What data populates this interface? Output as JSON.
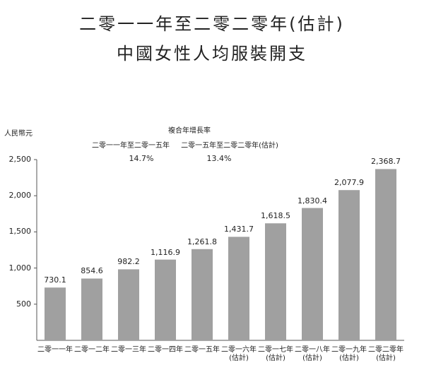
{
  "chart_data": {
    "type": "bar",
    "title": "二零一一年至二零二零年(估計)",
    "subtitle": "中國女性人均服裝開支",
    "y_label": "人民幣元",
    "annotation": {
      "title": "複合年增長率",
      "periods": [
        {
          "label": "二零一一年至二零一五年",
          "value": "14.7%"
        },
        {
          "label": "二零一五年至二零二零年(估計)",
          "value": "13.4%"
        }
      ]
    },
    "categories": [
      "二零一一年",
      "二零一二年",
      "二零一三年",
      "二零一四年",
      "二零一五年",
      "二零一六年\n(估計)",
      "二零一七年\n(估計)",
      "二零一八年\n(估計)",
      "二零一九年\n(估計)",
      "二零二零年\n(估計)"
    ],
    "values": [
      730.1,
      854.6,
      982.2,
      1116.9,
      1261.8,
      1431.7,
      1618.5,
      1830.4,
      2077.9,
      2368.7
    ],
    "value_labels": [
      "730.1",
      "854.6",
      "982.2",
      "1,116.9",
      "1,261.8",
      "1,431.7",
      "1,618.5",
      "1,830.4",
      "2,077.9",
      "2,368.7"
    ],
    "color": "#a0a0a0",
    "ylim": [
      0,
      2500
    ],
    "yticks": [
      500,
      {
        "value": 1000,
        "label": "1,000"
      },
      {
        "value": 1500,
        "label": "1,500"
      },
      {
        "value": 2000,
        "label": "2,000"
      },
      {
        "value": 2500,
        "label": "2,500"
      }
    ]
  }
}
